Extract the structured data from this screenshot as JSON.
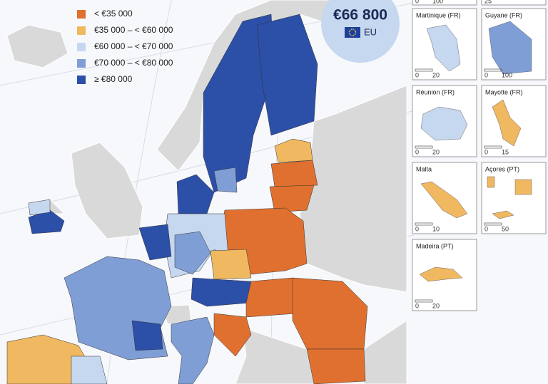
{
  "legend": {
    "items": [
      {
        "label": "< €35 000",
        "color": "#e07030"
      },
      {
        "label": "€35 000 – < €60 000",
        "color": "#f0b860"
      },
      {
        "label": "€60 000 – < €70 000",
        "color": "#c6d8f0"
      },
      {
        "label": "€70 000 – < €80 000",
        "color": "#7f9ed6"
      },
      {
        "label": "≥ €80 000",
        "color": "#2c4fa8"
      }
    ]
  },
  "eu_average": {
    "value": "€66 800",
    "label": "EU"
  },
  "partial_insets": [
    {
      "scale": [
        "0",
        "100"
      ]
    },
    {
      "scale": [
        "25"
      ]
    }
  ],
  "insets": [
    {
      "name": "Martinique (FR)",
      "scale": [
        "0",
        "20"
      ]
    },
    {
      "name": "Guyane (FR)",
      "scale": [
        "0",
        "100"
      ]
    },
    {
      "name": "Réunion (FR)",
      "scale": [
        "0",
        "20"
      ]
    },
    {
      "name": "Mayotte (FR)",
      "scale": [
        "0",
        "15"
      ]
    },
    {
      "name": "Malta",
      "scale": [
        "0",
        "10"
      ]
    },
    {
      "name": "Açores (PT)",
      "scale": [
        "0",
        "50"
      ]
    },
    {
      "name": "Madeira (PT)",
      "scale": [
        "0",
        "20"
      ]
    }
  ]
}
